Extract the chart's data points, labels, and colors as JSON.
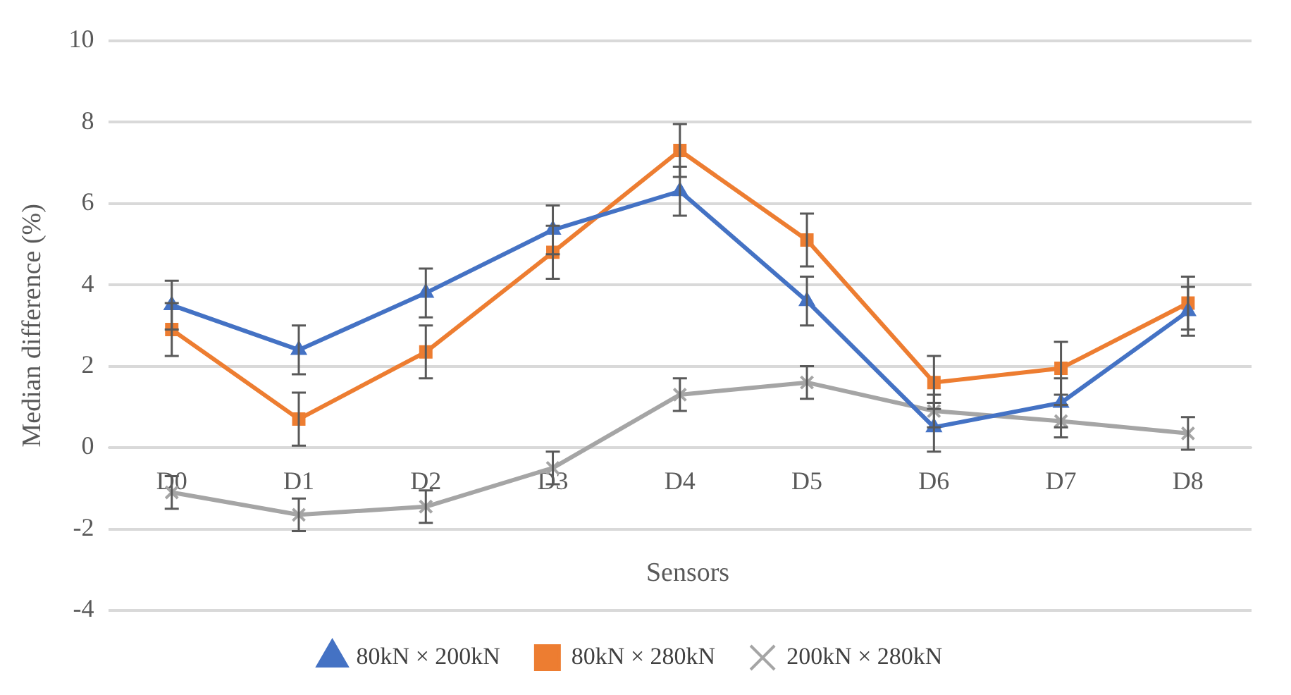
{
  "chart_data": {
    "type": "line",
    "xlabel": "Sensors",
    "ylabel": "Median difference (%)",
    "categories": [
      "D0",
      "D1",
      "D2",
      "D3",
      "D4",
      "D5",
      "D6",
      "D7",
      "D8"
    ],
    "series": [
      {
        "name": "80kN × 200kN",
        "color": "#4472c4",
        "marker": "triangle",
        "values": [
          3.5,
          2.4,
          3.8,
          5.35,
          6.3,
          3.6,
          0.5,
          1.1,
          3.35
        ],
        "errors": [
          0.6,
          0.6,
          0.6,
          0.6,
          0.6,
          0.6,
          0.6,
          0.6,
          0.6
        ]
      },
      {
        "name": "80kN × 280kN",
        "color": "#ed7d31",
        "marker": "square",
        "values": [
          2.9,
          0.7,
          2.35,
          4.8,
          7.3,
          5.1,
          1.6,
          1.95,
          3.55
        ],
        "errors": [
          0.65,
          0.65,
          0.65,
          0.65,
          0.65,
          0.65,
          0.65,
          0.65,
          0.65
        ]
      },
      {
        "name": "200kN × 280kN",
        "color": "#a5a5a5",
        "marker": "cross",
        "values": [
          -1.1,
          -1.65,
          -1.45,
          -0.5,
          1.3,
          1.6,
          0.9,
          0.65,
          0.35
        ],
        "errors": [
          0.4,
          0.4,
          0.4,
          0.4,
          0.4,
          0.4,
          0.4,
          0.4,
          0.4
        ]
      }
    ],
    "ylim": [
      -4,
      10
    ],
    "yticks": [
      -4,
      -2,
      0,
      2,
      4,
      6,
      8,
      10
    ],
    "grid": "y",
    "legend": "bottom",
    "line_style": "solid"
  }
}
